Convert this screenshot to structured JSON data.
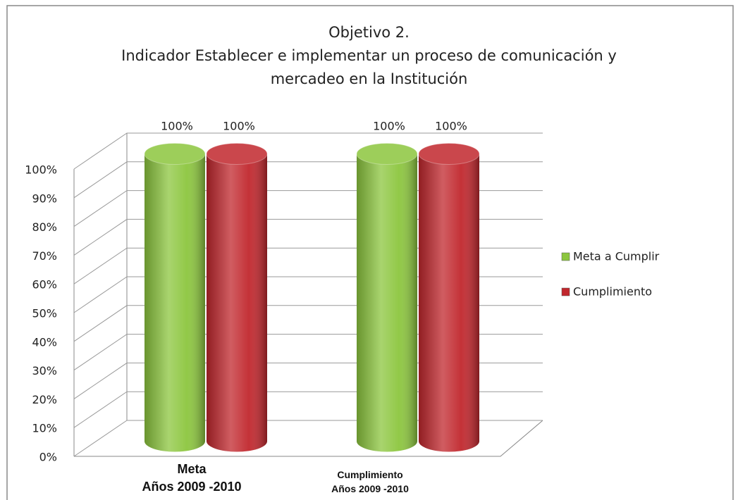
{
  "chart_data": {
    "type": "bar3d",
    "title": "Objetivo 2.\nIndicador Establecer e implementar un proceso de comunicación y\nmercadeo en la Institución",
    "categories": [
      "Meta\nAños  2009 -2010",
      "Cumplimiento\nAños  2009 -2010"
    ],
    "series": [
      {
        "name": "Meta a Cumplir",
        "color": "#8cc63e",
        "values": [
          100,
          100
        ],
        "value_labels": [
          "100%",
          "100%"
        ]
      },
      {
        "name": "Cumplimiento",
        "color": "#c1272d",
        "values": [
          100,
          100
        ],
        "value_labels": [
          "100%",
          "100%"
        ]
      }
    ],
    "ylim": [
      0,
      100
    ],
    "yticks": [
      {
        "value": 0,
        "label": "0%"
      },
      {
        "value": 10,
        "label": "10%"
      },
      {
        "value": 20,
        "label": "20%"
      },
      {
        "value": 30,
        "label": "30%"
      },
      {
        "value": 40,
        "label": "40%"
      },
      {
        "value": 50,
        "label": "50%"
      },
      {
        "value": 60,
        "label": "60%"
      },
      {
        "value": 70,
        "label": "70%"
      },
      {
        "value": 80,
        "label": "80%"
      },
      {
        "value": 90,
        "label": "90%"
      },
      {
        "value": 100,
        "label": "100%"
      }
    ],
    "grid": true,
    "legend": "right"
  }
}
